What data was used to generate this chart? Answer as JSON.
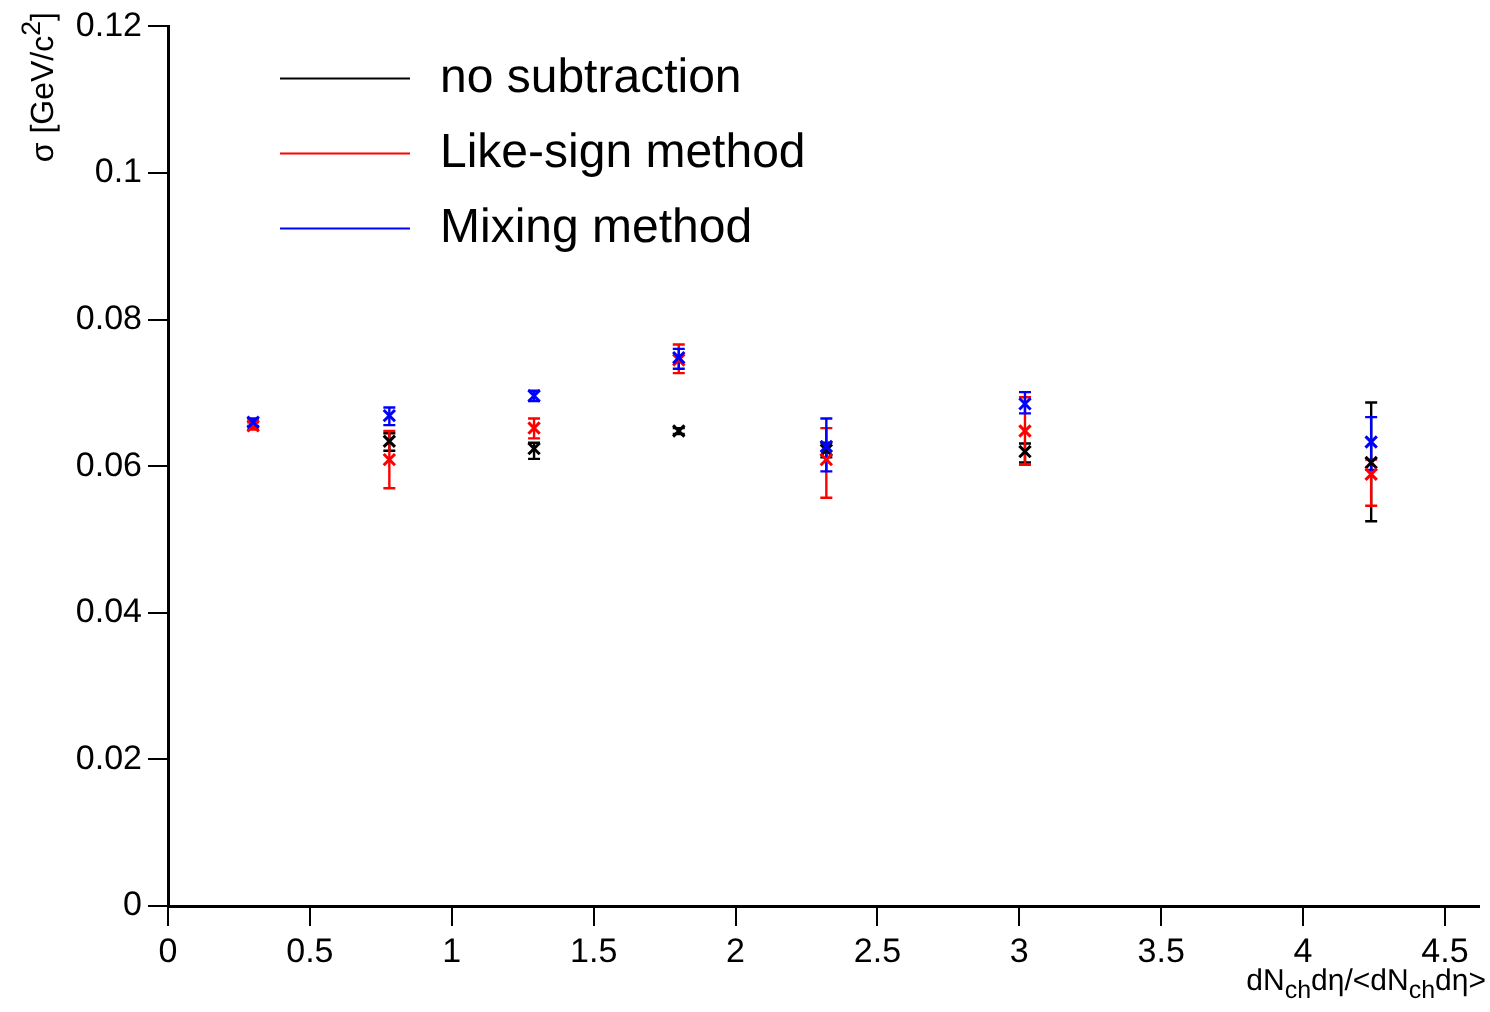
{
  "chart_data": {
    "type": "scatter",
    "xlabel": "dN$_{ch}$dη/<dN$_{ch}$dη>",
    "ylabel": "σ [GeV/c$^{2}$]",
    "x": [
      0.3,
      0.78,
      1.29,
      1.8,
      2.32,
      3.02,
      4.24
    ],
    "series": [
      {
        "name": "no subtraction",
        "color": "#000000",
        "values": [
          null,
          0.0634,
          0.0624,
          0.0648,
          0.0622,
          0.062,
          0.0605
        ],
        "errors": [
          null,
          [
            0.0621,
            0.0645
          ],
          [
            0.061,
            0.0632
          ],
          [
            0.0644,
            0.0652
          ],
          [
            0.0612,
            0.0632
          ],
          [
            0.0605,
            0.0631
          ],
          [
            0.0525,
            0.0687
          ]
        ]
      },
      {
        "name": "Like-sign method",
        "color": "#ff0000",
        "values": [
          0.0655,
          0.0609,
          0.0652,
          0.0745,
          0.0609,
          0.0648,
          0.0589
        ],
        "errors": [
          [
            0.065,
            0.066
          ],
          [
            0.057,
            0.0648
          ],
          [
            0.0638,
            0.0665
          ],
          [
            0.0727,
            0.0766
          ],
          [
            0.0557,
            0.0652
          ],
          [
            0.0602,
            0.0694
          ],
          [
            0.0546,
            0.0609
          ]
        ]
      },
      {
        "name": "Mixing method",
        "color": "#0000ff",
        "values": [
          0.066,
          0.0669,
          0.0696,
          0.0748,
          0.0627,
          0.0685,
          0.0633
        ],
        "errors": [
          [
            0.0655,
            0.0665
          ],
          [
            0.0656,
            0.068
          ],
          [
            0.0689,
            0.0703
          ],
          [
            0.0733,
            0.076
          ],
          [
            0.0593,
            0.0665
          ],
          [
            0.0672,
            0.0701
          ],
          [
            0.0595,
            0.0667
          ]
        ]
      }
    ],
    "xlim": [
      0,
      4.62
    ],
    "xticks": [
      0,
      0.5,
      1,
      1.5,
      2,
      2.5,
      3,
      3.5,
      4,
      4.5
    ],
    "ylim": [
      0,
      0.12
    ],
    "yticks": [
      0,
      0.02,
      0.04,
      0.06,
      0.08,
      0.1,
      0.12
    ],
    "grid": false,
    "legend": "top left",
    "marker": "cross"
  }
}
